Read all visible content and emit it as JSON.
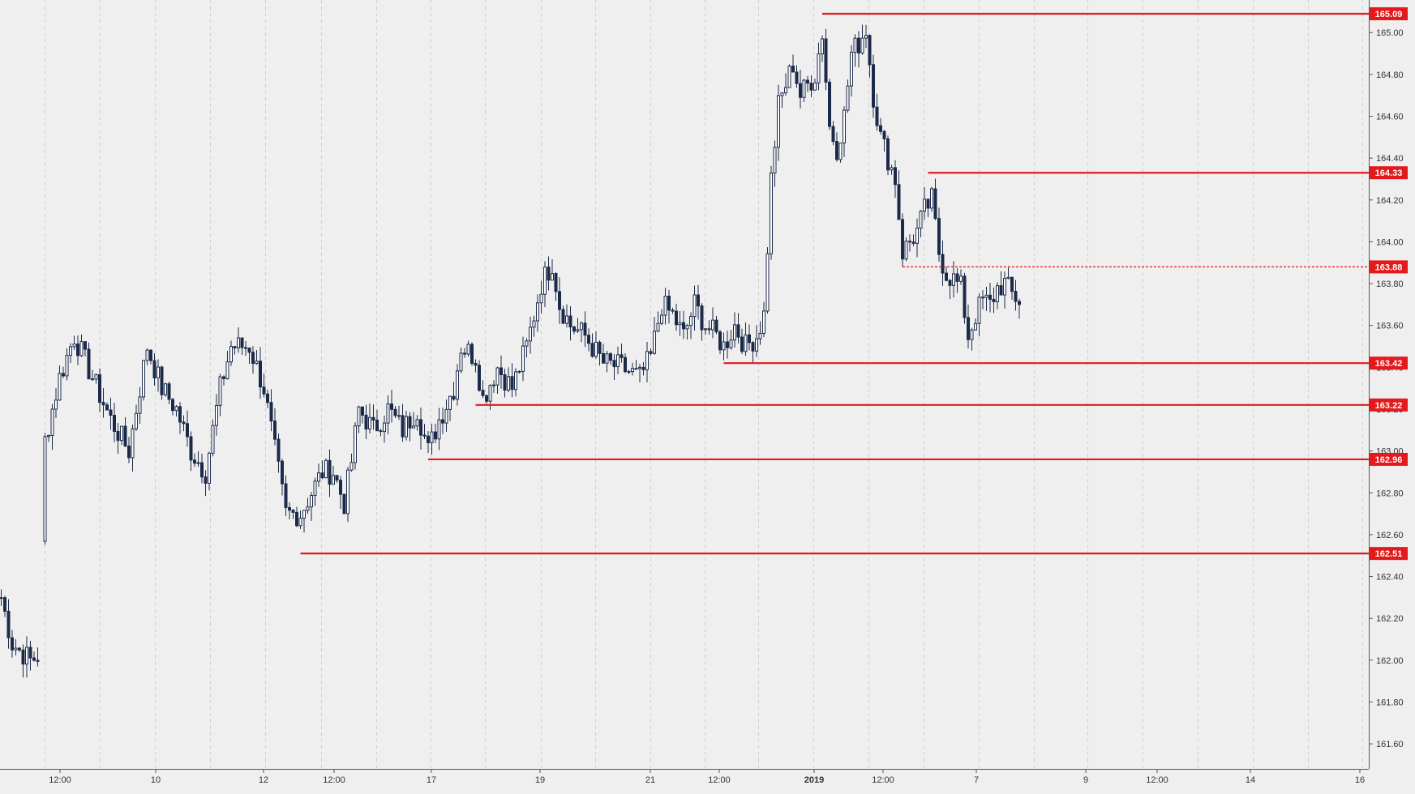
{
  "chart_data": {
    "type": "candlestick",
    "title": "",
    "xlabel": "",
    "ylabel": "",
    "ylim": [
      161.49,
      165.15
    ],
    "y_ticks": [
      161.6,
      161.8,
      162.0,
      162.2,
      162.4,
      162.6,
      162.8,
      163.0,
      163.2,
      163.4,
      163.6,
      163.8,
      164.0,
      164.2,
      164.4,
      164.6,
      164.8,
      165.0
    ],
    "y_tick_labels": [
      "161.60",
      "161.80",
      "162.00",
      "162.20",
      "162.40",
      "162.60",
      "162.80",
      "163.00",
      "163.20",
      "163.40",
      "163.60",
      "163.80",
      "164.00",
      "164.20",
      "164.40",
      "164.60",
      "164.80",
      "165.00"
    ],
    "x_tick_labels": [
      "12:00",
      "10",
      "12",
      "12:00",
      "17",
      "19",
      "21",
      "12:00",
      "2019",
      "12:00",
      "7",
      "9",
      "12:00",
      "14",
      "16"
    ],
    "x_tick_bold": [
      false,
      false,
      false,
      false,
      false,
      false,
      false,
      false,
      true,
      false,
      false,
      false,
      false,
      false,
      false
    ],
    "grid": true,
    "candle_color": "#1c2a4a",
    "level_color": "#e3191b",
    "level_label_color": "#ffffff",
    "price_levels": [
      {
        "value": 165.09,
        "label": "165.09",
        "style": "solid",
        "start_bar": 225
      },
      {
        "value": 164.33,
        "label": "164.33",
        "style": "solid",
        "start_bar": 254
      },
      {
        "value": 163.88,
        "label": "163.88",
        "style": "dashed",
        "start_bar": 247
      },
      {
        "value": 163.42,
        "label": "163.42",
        "style": "solid",
        "start_bar": 198
      },
      {
        "value": 163.22,
        "label": "163.22",
        "style": "solid",
        "start_bar": 130
      },
      {
        "value": 162.96,
        "label": "162.96",
        "style": "solid",
        "start_bar": 117
      },
      {
        "value": 162.51,
        "label": "162.51",
        "style": "solid",
        "start_bar": 82
      }
    ],
    "price_anchors": [
      [
        0,
        162.3
      ],
      [
        3,
        162.08
      ],
      [
        8,
        162.0
      ],
      [
        10,
        162.02
      ],
      [
        12,
        163.05
      ],
      [
        16,
        163.35
      ],
      [
        20,
        163.55
      ],
      [
        25,
        163.35
      ],
      [
        30,
        163.15
      ],
      [
        35,
        163.0
      ],
      [
        40,
        163.5
      ],
      [
        44,
        163.3
      ],
      [
        48,
        163.2
      ],
      [
        52,
        163.0
      ],
      [
        56,
        162.9
      ],
      [
        60,
        163.3
      ],
      [
        63,
        163.5
      ],
      [
        68,
        163.5
      ],
      [
        72,
        163.3
      ],
      [
        75,
        163.0
      ],
      [
        78,
        162.7
      ],
      [
        82,
        162.7
      ],
      [
        85,
        162.8
      ],
      [
        88,
        162.9
      ],
      [
        91,
        162.9
      ],
      [
        94,
        162.75
      ],
      [
        96,
        162.95
      ],
      [
        98,
        163.2
      ],
      [
        102,
        163.1
      ],
      [
        106,
        163.2
      ],
      [
        110,
        163.1
      ],
      [
        114,
        163.2
      ],
      [
        117,
        163.0
      ],
      [
        120,
        163.15
      ],
      [
        124,
        163.3
      ],
      [
        126,
        163.5
      ],
      [
        130,
        163.45
      ],
      [
        132,
        163.25
      ],
      [
        136,
        163.4
      ],
      [
        140,
        163.3
      ],
      [
        144,
        163.5
      ],
      [
        148,
        163.8
      ],
      [
        151,
        163.9
      ],
      [
        153,
        163.7
      ],
      [
        156,
        163.6
      ],
      [
        160,
        163.55
      ],
      [
        165,
        163.42
      ],
      [
        170,
        163.4
      ],
      [
        175,
        163.35
      ],
      [
        178,
        163.45
      ],
      [
        181,
        163.7
      ],
      [
        184,
        163.65
      ],
      [
        187,
        163.55
      ],
      [
        190,
        163.7
      ],
      [
        193,
        163.6
      ],
      [
        196,
        163.55
      ],
      [
        198,
        163.5
      ],
      [
        201,
        163.6
      ],
      [
        204,
        163.5
      ],
      [
        207,
        163.55
      ],
      [
        209,
        163.65
      ],
      [
        211,
        164.3
      ],
      [
        213,
        164.65
      ],
      [
        215,
        164.75
      ],
      [
        217,
        164.85
      ],
      [
        219,
        164.7
      ],
      [
        221,
        164.75
      ],
      [
        223,
        164.8
      ],
      [
        225,
        165.0
      ],
      [
        227,
        164.55
      ],
      [
        229,
        164.45
      ],
      [
        231,
        164.6
      ],
      [
        233,
        164.9
      ],
      [
        235,
        164.95
      ],
      [
        237,
        165.02
      ],
      [
        239,
        164.7
      ],
      [
        241,
        164.5
      ],
      [
        243,
        164.4
      ],
      [
        245,
        164.3
      ],
      [
        247,
        163.95
      ],
      [
        249,
        164.0
      ],
      [
        251,
        164.05
      ],
      [
        253,
        164.15
      ],
      [
        255,
        164.2
      ],
      [
        257,
        163.95
      ],
      [
        259,
        163.85
      ],
      [
        261,
        163.82
      ],
      [
        263,
        163.78
      ],
      [
        265,
        163.55
      ],
      [
        267,
        163.65
      ],
      [
        269,
        163.72
      ],
      [
        271,
        163.7
      ],
      [
        273,
        163.78
      ],
      [
        275,
        163.8
      ],
      [
        277,
        163.75
      ],
      [
        279,
        163.72
      ]
    ]
  }
}
